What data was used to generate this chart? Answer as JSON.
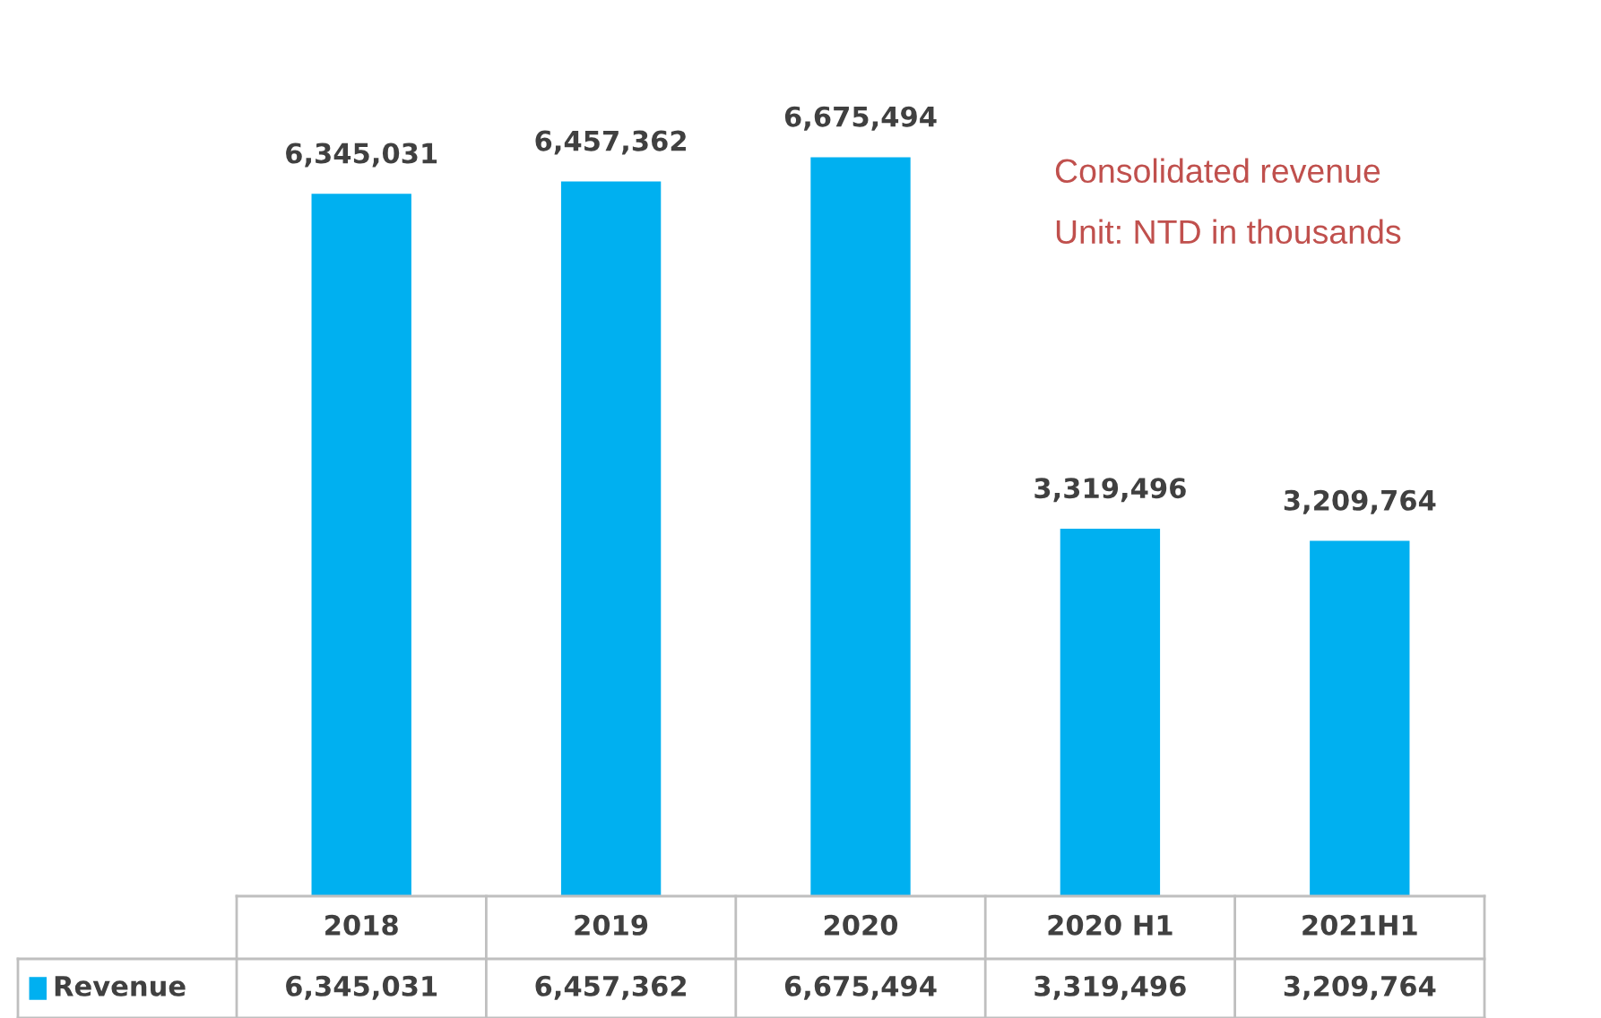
{
  "chart_data": {
    "type": "bar",
    "categories": [
      "2018",
      "2019",
      "2020",
      "2020 H1",
      "2021H1"
    ],
    "series": [
      {
        "name": "Revenue",
        "color": "#00b0f0",
        "values": [
          6345031,
          6457362,
          6675494,
          3319496,
          3209764
        ],
        "value_labels": [
          "6,345,031",
          "6,457,362",
          "6,675,494",
          "3,319,496",
          "3,209,764"
        ]
      }
    ],
    "legend": "bottom",
    "annotations": [
      "Consolidated revenue",
      "Unit: NTD in thousands"
    ]
  }
}
